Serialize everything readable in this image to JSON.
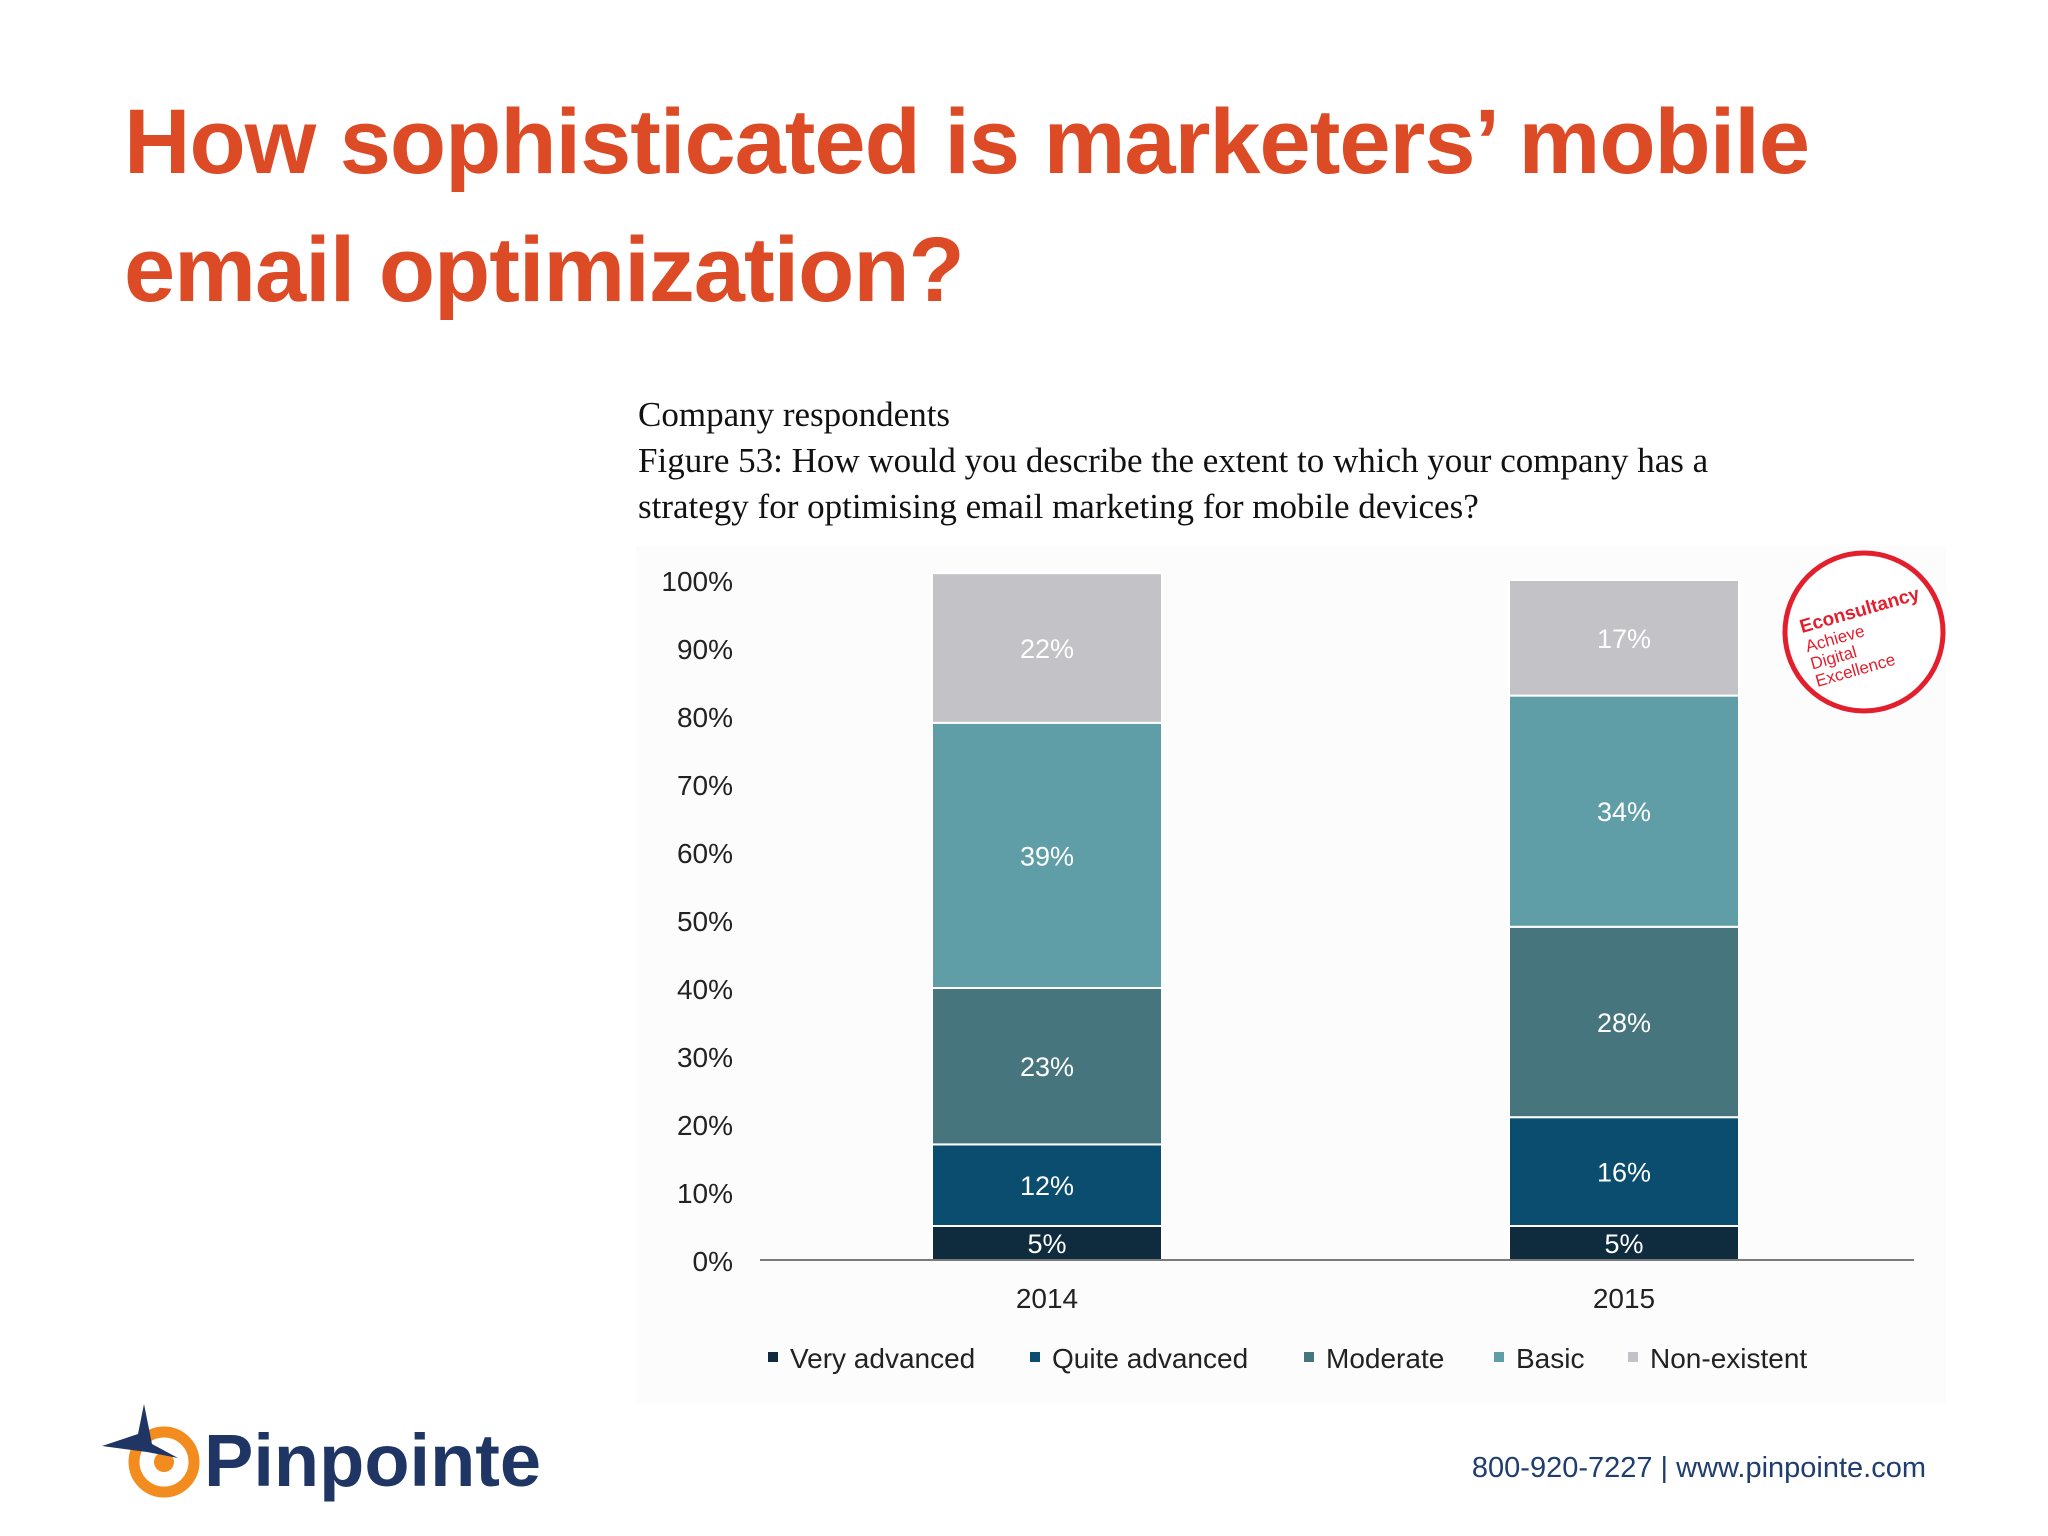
{
  "slide": {
    "title_line1": "How sophisticated is marketers’ mobile",
    "title_line2": "email optimization?",
    "accent_color": "#dc4a26"
  },
  "chart_data": {
    "type": "bar",
    "stacked": true,
    "subtitle": "Company respondents",
    "title_line1": "Figure 53: How would you describe the extent to which your company has a",
    "title_line2": "strategy for optimising email marketing for mobile devices?",
    "categories": [
      "2014",
      "2015"
    ],
    "series": [
      {
        "name": "Very advanced",
        "values": [
          5,
          5
        ],
        "labels": [
          "5%",
          "5%"
        ],
        "color": "#0f2c3f"
      },
      {
        "name": "Quite advanced",
        "values": [
          12,
          16
        ],
        "labels": [
          "12%",
          "16%"
        ],
        "color": "#0a4d6e"
      },
      {
        "name": "Moderate",
        "values": [
          23,
          28
        ],
        "labels": [
          "23%",
          "28%"
        ],
        "color": "#47757d"
      },
      {
        "name": "Basic",
        "values": [
          39,
          34
        ],
        "labels": [
          "39%",
          "34%"
        ],
        "color": "#5f9ea6"
      },
      {
        "name": "Non-existent",
        "values": [
          22,
          17
        ],
        "labels": [
          "22%",
          "17%"
        ],
        "color": "#c2c2c7"
      }
    ],
    "ylim": [
      0,
      100
    ],
    "yticks": [
      "0%",
      "10%",
      "20%",
      "30%",
      "40%",
      "50%",
      "60%",
      "70%",
      "80%",
      "90%",
      "100%"
    ],
    "legend_position": "bottom",
    "grid": false
  },
  "badge": {
    "brand": "Econsultancy",
    "line1": "Achieve",
    "line2": "Digital",
    "line3": "Excellence",
    "color": "#e31e2d"
  },
  "footer": {
    "logo_text": "Pinpointe",
    "contact": "800-920-7227 | www.pinpointe.com"
  }
}
